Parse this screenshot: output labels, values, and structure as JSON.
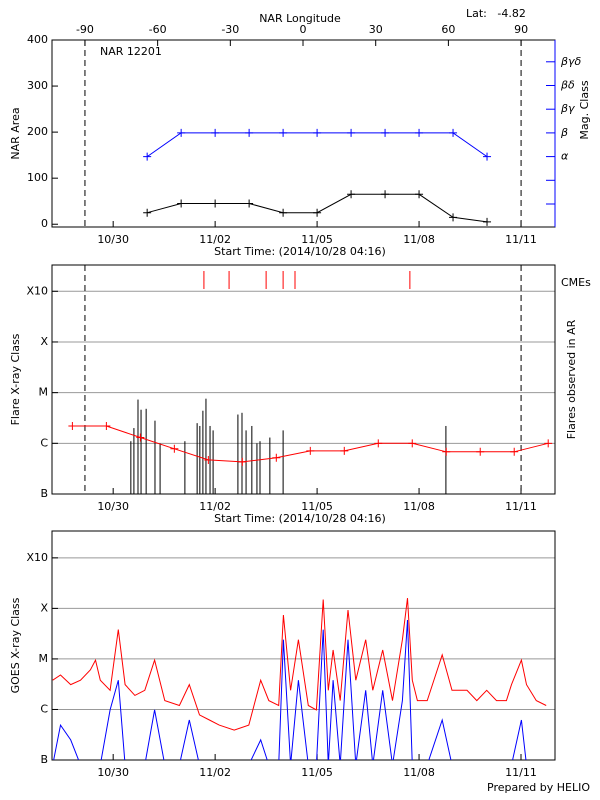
{
  "chart_data": [
    {
      "type": "line",
      "title": "NAR 12201",
      "annotation": "Lat:   -4.82",
      "x2_label": "NAR Longitude",
      "x2lim": [
        -103.6,
        104
      ],
      "x2ticks": [
        -90,
        -60,
        -30,
        0,
        30,
        60,
        90
      ],
      "vlines_x2": [
        -90,
        90
      ],
      "x_label": "Start Time: (2014/10/28 04:16)",
      "xlim": [
        0.2,
        15.0
      ],
      "xticks": [
        {
          "value": 2,
          "label": "10/30"
        },
        {
          "value": 5,
          "label": "11/02"
        },
        {
          "value": 8,
          "label": "11/05"
        },
        {
          "value": 11,
          "label": "11/08"
        },
        {
          "value": 14,
          "label": "11/11"
        }
      ],
      "y_label": "NAR Area",
      "ylim": [
        -6,
        400
      ],
      "yticks": [
        0,
        100,
        200,
        300,
        400
      ],
      "y2_label": "Mag. Class",
      "y2_color": "#0000ff",
      "y2_categories": [
        null,
        null,
        "α",
        "β",
        "βγ",
        "βδ",
        "βγδ"
      ],
      "x": [
        3,
        4,
        5,
        6,
        7,
        8,
        9,
        10,
        11,
        12,
        13
      ],
      "series": [
        {
          "color": "#000000",
          "marker": "+",
          "values": [
            25,
            45,
            45,
            45,
            25,
            25,
            65,
            65,
            65,
            15,
            5
          ]
        },
        {
          "color": "#0000ff",
          "marker": "+",
          "axis": "y2",
          "values": [
            "α",
            "β",
            "β",
            "β",
            "β",
            "β",
            "β",
            "β",
            "β",
            "β",
            "α"
          ]
        }
      ]
    },
    {
      "type": "flares",
      "x_label": "Start Time: (2014/10/28 04:16)",
      "xlim": [
        0.2,
        15.0
      ],
      "xticks": [
        {
          "value": 2,
          "label": "10/30"
        },
        {
          "value": 5,
          "label": "11/02"
        },
        {
          "value": 8,
          "label": "11/05"
        },
        {
          "value": 11,
          "label": "11/08"
        },
        {
          "value": 14,
          "label": "11/11"
        }
      ],
      "y_label": "Flare X-ray Class",
      "y2_label": "Flares observed in AR",
      "log_y": true,
      "grid": true,
      "ylim": [
        1e-07,
        0.0033
      ],
      "yticks": [
        {
          "value": 1e-07,
          "label": "B"
        },
        {
          "value": 1e-06,
          "label": "C"
        },
        {
          "value": 1e-05,
          "label": "M"
        },
        {
          "value": 0.0001,
          "label": "X"
        },
        {
          "value": 0.001,
          "label": "X10"
        }
      ],
      "cme_label": "CMEs",
      "cme_color": "#ff0000",
      "cme_x": [
        4.67,
        5.41,
        6.5,
        7.0,
        7.35,
        10.73
      ],
      "flare_color": "#000000",
      "flare_x": [
        2.52,
        2.61,
        2.73,
        2.82,
        2.97,
        3.23,
        3.38,
        4.11,
        4.47,
        4.55,
        4.64,
        4.73,
        4.85,
        4.94,
        5.67,
        5.79,
        5.91,
        6.08,
        6.23,
        6.32,
        6.61,
        7.0,
        11.79
      ],
      "flare_values": [
        1.1e-06,
        2e-06,
        7.3e-06,
        4.6e-06,
        4.8e-06,
        2.8e-06,
        1e-06,
        1.1e-06,
        2.5e-06,
        2.2e-06,
        4.4e-06,
        7.6e-06,
        2.2e-06,
        1.8e-06,
        3.7e-06,
        4e-06,
        1.8e-06,
        2.2e-06,
        1e-06,
        1.1e-06,
        1.3e-06,
        1.8e-06,
        2.2e-06
      ],
      "series": [
        {
          "color": "#ff0000",
          "marker": "+",
          "x": [
            0.8,
            1.8,
            2.8,
            3.8,
            4.8,
            5.8,
            6.8,
            7.8,
            8.8,
            9.8,
            10.8,
            11.8,
            12.8,
            13.8,
            14.8
          ],
          "values": [
            2.2e-06,
            2.2e-06,
            1.3e-06,
            7.8e-07,
            4.7e-07,
            4.3e-07,
            5.2e-07,
            7.1e-07,
            7.1e-07,
            1e-06,
            1e-06,
            6.8e-07,
            6.8e-07,
            6.8e-07,
            1e-06
          ]
        }
      ]
    },
    {
      "type": "line",
      "xlim": [
        0.2,
        15.0
      ],
      "xticks": [
        {
          "value": 2,
          "label": "10/30"
        },
        {
          "value": 5,
          "label": "11/02"
        },
        {
          "value": 8,
          "label": "11/05"
        },
        {
          "value": 11,
          "label": "11/08"
        },
        {
          "value": 14,
          "label": "11/11"
        }
      ],
      "y_label": "GOES X-ray Class",
      "log_y": true,
      "grid": true,
      "ylim": [
        1e-07,
        0.0034
      ],
      "yticks": [
        {
          "value": 1e-07,
          "label": "B"
        },
        {
          "value": 1e-06,
          "label": "C"
        },
        {
          "value": 1e-05,
          "label": "M"
        },
        {
          "value": 0.0001,
          "label": "X"
        },
        {
          "value": 0.001,
          "label": "X10"
        }
      ],
      "footer": "Prepared by HELIO",
      "series": [
        {
          "color": "#ff0000",
          "x": [
            0.22,
            0.45,
            0.75,
            1.04,
            1.33,
            1.48,
            1.62,
            1.91,
            2.15,
            2.35,
            2.64,
            2.93,
            3.22,
            3.52,
            3.95,
            4.24,
            4.54,
            4.83,
            5.12,
            5.56,
            5.99,
            6.34,
            6.58,
            6.87,
            7.01,
            7.22,
            7.45,
            7.74,
            7.98,
            8.18,
            8.33,
            8.47,
            8.68,
            8.91,
            9.14,
            9.43,
            9.64,
            9.93,
            10.22,
            10.51,
            10.66,
            10.8,
            10.95,
            11.24,
            11.68,
            11.97,
            12.41,
            12.7,
            12.99,
            13.28,
            13.57,
            13.72,
            14.01,
            14.16,
            14.45,
            14.74
          ],
          "values": [
            3.8e-06,
            4.8e-06,
            3.1e-06,
            3.8e-06,
            6.1e-06,
            9.5e-06,
            3.8e-06,
            2.4e-06,
            3.8e-05,
            3.1e-06,
            1.9e-06,
            2.4e-06,
            9.5e-06,
            1.5e-06,
            1.2e-06,
            3.1e-06,
            7.8e-07,
            6.2e-07,
            4.9e-07,
            3.9e-07,
            4.9e-07,
            3.8e-06,
            1.5e-06,
            1.2e-06,
            7.4e-05,
            2.4e-06,
            2.4e-05,
            1.2e-06,
            9.8e-07,
            0.00015,
            2.4e-06,
            1.5e-05,
            1.5e-06,
            9.3e-05,
            3.8e-06,
            2.4e-05,
            2.4e-06,
            1.5e-05,
            1.5e-06,
            2.4e-05,
            0.00016,
            3.8e-06,
            1.5e-06,
            1.5e-06,
            1.2e-05,
            2.4e-06,
            2.4e-06,
            1.5e-06,
            2.4e-06,
            1.5e-06,
            1.5e-06,
            3.1e-06,
            9.5e-06,
            3.1e-06,
            1.5e-06,
            1.2e-06
          ]
        },
        {
          "color": "#0000ff",
          "x": [
            0.22,
            0.45,
            0.75,
            1.04,
            1.62,
            1.91,
            2.15,
            2.35,
            2.93,
            3.22,
            3.52,
            3.95,
            4.24,
            4.54,
            5.99,
            6.34,
            6.58,
            6.87,
            7.01,
            7.22,
            7.45,
            7.74,
            7.98,
            8.18,
            8.33,
            8.47,
            8.68,
            8.91,
            9.14,
            9.43,
            9.64,
            9.93,
            10.22,
            10.51,
            10.66,
            10.8,
            11.24,
            11.68,
            11.97,
            13.72,
            14.01,
            14.16,
            14.74
          ],
          "values": [
            8e-08,
            4.9e-07,
            2.5e-07,
            8e-08,
            8e-08,
            9.8e-07,
            3.8e-06,
            8e-08,
            8e-08,
            9.8e-07,
            8e-08,
            8e-08,
            6.2e-07,
            8e-08,
            8e-08,
            2.5e-07,
            8e-08,
            8e-08,
            2.4e-05,
            8e-08,
            3.8e-06,
            8e-08,
            8e-08,
            3.8e-05,
            8e-08,
            3.8e-06,
            8e-08,
            2.4e-05,
            8e-08,
            2.4e-06,
            8e-08,
            2.4e-06,
            8e-08,
            1.5e-06,
            5.9e-05,
            8e-08,
            8e-08,
            6.2e-07,
            8e-08,
            8e-08,
            6.2e-07,
            8e-08,
            8e-08
          ]
        }
      ]
    }
  ]
}
